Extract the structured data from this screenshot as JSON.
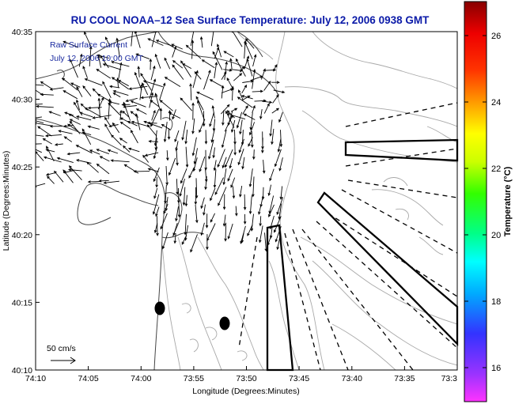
{
  "title": "RU COOL  NOAA–12  Sea Surface Temperature:  July 12, 2006 0938 GMT",
  "legend": {
    "line1": "Raw Surface Current",
    "line2": "July 12, 2006 10:00 GMT"
  },
  "axes": {
    "xlabel": "Longitude (Degrees:Minutes)",
    "ylabel": "Latitude (Degrees:Minutes)",
    "x_ticks": [
      "74:10",
      "74:05",
      "74:00",
      "73:55",
      "73:50",
      "73:45",
      "73:40",
      "73:35",
      "73:3"
    ],
    "y_ticks": [
      "40:35",
      "40:30",
      "40:25",
      "40:20",
      "40:15",
      "40:10"
    ]
  },
  "scale_vector": {
    "label": "50 cm/s",
    "value_cm_s": 50
  },
  "colorbar": {
    "label": "Temperature (°C)",
    "ticks": [
      "26",
      "24",
      "22",
      "20",
      "18",
      "16"
    ],
    "range": [
      15.2,
      27.6
    ],
    "colors": [
      "#ff33ff",
      "#9933ff",
      "#3333ff",
      "#00aaff",
      "#00ffff",
      "#00ff88",
      "#33ff00",
      "#ccff00",
      "#ffff00",
      "#ff9900",
      "#ff3300",
      "#ee0000",
      "#880000"
    ]
  },
  "colors": {
    "title": "#0b1aa8",
    "coast": "#444444",
    "contour": "#aaaaaa",
    "vector": "#000000"
  }
}
